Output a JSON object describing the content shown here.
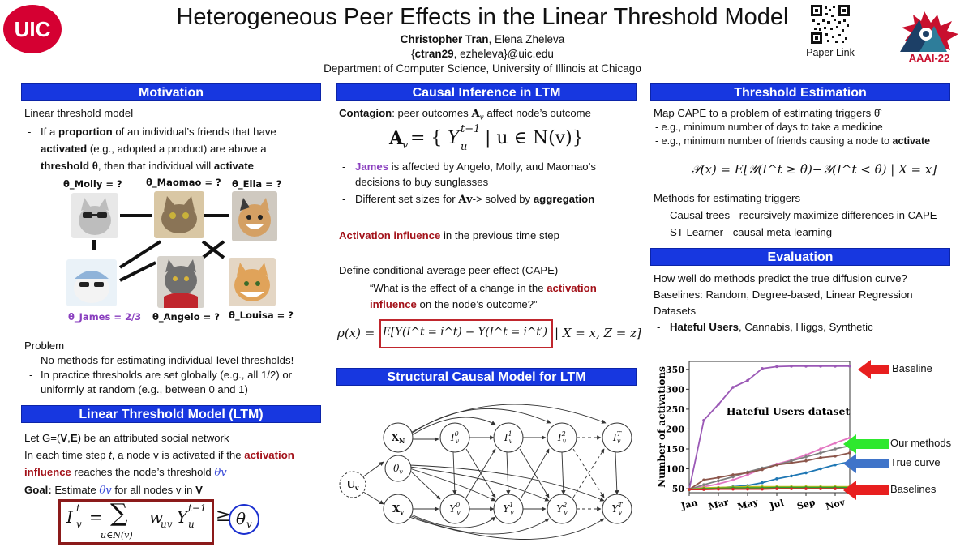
{
  "header": {
    "logo_left": "UIC",
    "title": "Heterogeneous Peer Effects in the Linear Threshold Model",
    "author_first": "Christopher Tran",
    "author_rest": ", Elena Zheleva",
    "email_prefix": "{",
    "email_bold": "ctran29",
    "email_rest": ", ezheleva}@uic.edu",
    "department": "Department of Computer Science, University of Illinois at Chicago",
    "qr_caption": "Paper Link",
    "logo_right": "AAAI-22"
  },
  "motivation": {
    "header": "Motivation",
    "line1": "Linear threshold model",
    "b1_a": "If a ",
    "b1_b": "proportion",
    "b1_c": " of an individual’s friends that have",
    "b1_d": "activated",
    "b1_e": " (e.g., adopted a product) are above a",
    "b1_f": "threshold θ",
    "b1_g": ", then that individual will ",
    "b1_h": "activate",
    "nodes": {
      "molly": "θ_Molly = ?",
      "maomao": "θ_Maomao = ?",
      "ella": "θ_Ella = ?",
      "james": "θ_James = 2/3",
      "angelo": "θ_Angelo = ?",
      "louisa": "θ_Louisa = ?"
    },
    "problem": "Problem",
    "p1": "No methods for estimating individual-level thresholds!",
    "p2a": "In practice thresholds are set globally (e.g., all 1/2) or",
    "p2b": "uniformly at random (e.g., between 0 and 1)"
  },
  "ltm": {
    "header": "Linear Threshold Model (LTM)",
    "l1a": "Let G=(",
    "l1b": "V",
    "l1c": ",",
    "l1d": "E",
    "l1e": ") be an attributed social network",
    "l2a": "In each time step ",
    "l2b": "t",
    "l2c": ", a node v is activated if the ",
    "l2d": "activation",
    "l3a": "influence",
    "l3b": " reaches the node’s threshold ",
    "l3c": "θv",
    "l4a": "Goal:",
    "l4b": " Estimate ",
    "l4c": "θv",
    "l4d": " for all nodes v in ",
    "l4e": "V",
    "eq_lhs": "I",
    "eq_sup": "t",
    "eq_sub": "v",
    "eq_eq": "=",
    "eq_sum": "∑",
    "eq_sumsub": "u∈N(v)",
    "eq_term": "w",
    "eq_termsub": "uv",
    "eq_y": "Y",
    "eq_ysup": "t−1",
    "eq_ysub": "u",
    "eq_geq": "≥",
    "eq_theta": "θ",
    "eq_thetasub": "v"
  },
  "causal": {
    "header": "Causal Inference in LTM",
    "c1a": "Contagion",
    "c1b": ": peer outcomes ",
    "c1c": "A",
    "c1d": "v",
    "c1e": " affect node’s outcome",
    "eq": "Av = { Yu^(t−1) | u ∈ N(v) }",
    "eq_a": "A",
    "eq_v": "v",
    "eq_mid": " = {",
    "eq_y": "Y",
    "eq_sup": "t−1",
    "eq_sub": "u",
    "eq_rest": " | u ∈ N(v)}",
    "b1a": "James",
    "b1b": " is affected by Angelo, Molly, and Maomao’s",
    "b1c": "decisions to buy sunglasses",
    "b2a": "Different set sizes for ",
    "b2b": "Av",
    "b2c": "-> solved by ",
    "b2d": "aggregation",
    "act_a": "Activation influence",
    "act_b": " in the previous time step",
    "cape": "Define conditional average peer effect (CAPE)",
    "q1a": "“What is the effect of a change in the ",
    "q1b": "activation",
    "q2a": "influence",
    "q2b": " on the node’s outcome?”",
    "rho_lhs": "ρ(x) = ",
    "rho_box": "E[Y(I^t = i^t) − Y(I^t = i^t′)",
    "rho_rhs": " | X = x, Z = z]"
  },
  "scm": {
    "header": "Structural Causal Model for LTM",
    "nodes": [
      "X_N",
      "I_v^0",
      "I_v^1",
      "I_v^2",
      "I_v^T",
      "θ_v",
      "U_v",
      "X_v",
      "Y_v^0",
      "Y_v^1",
      "Y_v^2",
      "Y_v^T"
    ]
  },
  "threshold": {
    "header": "Threshold Estimation",
    "l1": "Map CAPE to a problem of estimating triggers θ̂",
    "b1": "e.g., minimum number of days to take a medicine",
    "b2a": "e.g., minimum number of friends causing a node to ",
    "b2b": "activate",
    "eq": "𝒫(x) = E[𝒴(I^t ≥ θ̂)−𝒴(I^t < θ̂) | X = x]",
    "methods": "Methods for estimating triggers",
    "m1": "Causal trees - recursively maximize differences in CAPE",
    "m2": "ST-Learner - causal meta-learning"
  },
  "evaluation": {
    "header": "Evaluation",
    "l1": "How well do methods predict the true diffusion curve?",
    "l2": "Baselines: Random, Degree-based, Linear Regression",
    "l3": "Datasets",
    "d1a": "Hateful Users",
    "d1b": ", Cannabis, Higgs, Synthetic",
    "arrow_baseline": "Baseline",
    "arrow_ours": "Our methods",
    "arrow_true": "True curve",
    "arrow_baselines": "Baselines"
  },
  "chart_data": {
    "type": "line",
    "title": "Hateful Users dataset",
    "xlabel": "",
    "ylabel": "Number of activations",
    "x_ticks": [
      "Jan",
      "Mar",
      "May",
      "Jul",
      "Sep",
      "Nov"
    ],
    "y_ticks": [
      50,
      100,
      150,
      200,
      250,
      300,
      350
    ],
    "ylim": [
      40,
      370
    ],
    "x": [
      1,
      2,
      3,
      4,
      5,
      6,
      7,
      8,
      9,
      10,
      11,
      12
    ],
    "grid": false,
    "series": [
      {
        "name": "",
        "color": "#9b59b6",
        "values": [
          48,
          222,
          262,
          305,
          322,
          352,
          357,
          358,
          358,
          358,
          358,
          358
        ]
      },
      {
        "name": "",
        "color": "#e377c2",
        "values": [
          48,
          55,
          62,
          72,
          85,
          100,
          112,
          122,
          135,
          150,
          165,
          178
        ]
      },
      {
        "name": "",
        "color": "#7f7f7f",
        "values": [
          48,
          60,
          70,
          80,
          92,
          102,
          110,
          120,
          130,
          140,
          150,
          158
        ]
      },
      {
        "name": "",
        "color": "#8c564b",
        "values": [
          48,
          72,
          78,
          85,
          90,
          98,
          110,
          115,
          120,
          128,
          132,
          140
        ]
      },
      {
        "name": "",
        "color": "#1f77b4",
        "values": [
          48,
          50,
          52,
          55,
          58,
          65,
          75,
          82,
          90,
          100,
          110,
          118
        ]
      },
      {
        "name": "",
        "color": "#bcbd22",
        "values": [
          48,
          52,
          53,
          54,
          55,
          55,
          55,
          55,
          55,
          55,
          55,
          55
        ]
      },
      {
        "name": "",
        "color": "#2ca02c",
        "values": [
          48,
          50,
          51,
          52,
          52,
          52,
          53,
          53,
          53,
          53,
          53,
          53
        ]
      },
      {
        "name": "",
        "color": "#d62728",
        "values": [
          48,
          48,
          49,
          49,
          49,
          49,
          50,
          50,
          50,
          50,
          50,
          50
        ]
      }
    ]
  }
}
